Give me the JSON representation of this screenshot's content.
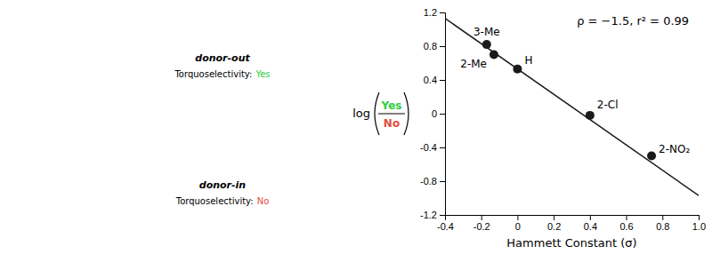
{
  "chart_data": {
    "type": "scatter",
    "xlabel": "Hammett Constant (σ)",
    "ylabel": {
      "text": "log",
      "numerator": {
        "text": "Yes",
        "color": "#2ecc40"
      },
      "denominator": {
        "text": "No",
        "color": "#e74c3c"
      }
    },
    "annotations": [
      {
        "text": "ρ = −1.5, r² = 0.99"
      },
      {
        "text": "donor-out"
      },
      {
        "text": "Torquoselectivity:"
      },
      {
        "text": "Yes",
        "color": "#2ecc40"
      },
      {
        "text": "donor-in"
      },
      {
        "text": "Torquoselectivity:"
      },
      {
        "text": "No",
        "color": "#e74c3c"
      }
    ],
    "xlim": [
      -0.4,
      1.0
    ],
    "ylim": [
      -1.2,
      1.2
    ],
    "xticks": [
      -0.4,
      -0.2,
      0,
      0.2,
      0.4,
      0.6,
      0.8,
      {
        "value": 1.0,
        "label": "1.0"
      }
    ],
    "yticks": [
      -1.2,
      -0.8,
      -0.4,
      0,
      0.4,
      0.8,
      1.2
    ],
    "series": [
      {
        "type": "line",
        "color": "#1a1a1a",
        "x": [
          -0.4,
          1.0
        ],
        "values": [
          1.13,
          -0.97
        ]
      },
      {
        "type": "scatter",
        "color": "#1a1a1a",
        "x": [
          -0.17,
          -0.13,
          0.0,
          0.4,
          0.74
        ],
        "values": [
          0.82,
          0.7,
          0.53,
          -0.02,
          -0.5
        ],
        "labels": [
          "3-Me",
          "2-Me",
          "H",
          "2-Cl",
          "2-NO₂"
        ]
      }
    ]
  }
}
